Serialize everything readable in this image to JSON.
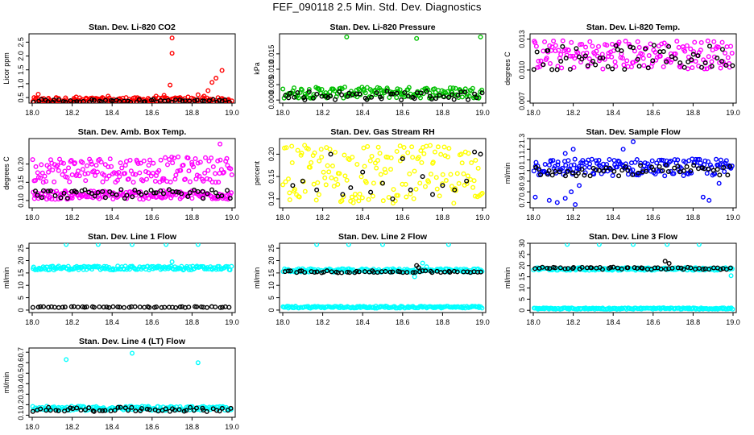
{
  "page": {
    "title": "FEF_090118  2.5 Min. Std. Dev. Diagnostics"
  },
  "colors": {
    "red": "#ff0000",
    "green": "#00c000",
    "magenta": "#ff00ff",
    "yellow": "#ffff00",
    "blue": "#0000ff",
    "cyan": "#00ffff",
    "black": "#000000"
  },
  "chart_data": [
    {
      "type": "scatter",
      "title": "Stan. Dev. Li-820 CO2",
      "xlabel": "",
      "ylabel": "Licor ppm",
      "xlim": [
        18.0,
        19.0
      ],
      "ylim": [
        0.3,
        2.8
      ],
      "xticks": [
        18.0,
        18.2,
        18.4,
        18.6,
        18.8,
        19.0
      ],
      "xtick_labels": [
        "18.0",
        "18.2",
        "18.4",
        "18.6",
        "18.8",
        "19.0"
      ],
      "yticks": [
        0.5,
        1.0,
        1.5,
        2.0,
        2.5
      ],
      "ytick_labels": [
        "0.5",
        "1.0",
        "1.5",
        "2.0",
        "2.5"
      ],
      "series": [
        {
          "name": "main",
          "color": "red",
          "points": [
            [
              18.03,
              0.62
            ],
            [
              18.08,
              0.45
            ],
            [
              18.12,
              0.5
            ],
            [
              18.17,
              0.42
            ],
            [
              18.22,
              0.52
            ],
            [
              18.27,
              0.48
            ],
            [
              18.33,
              0.45
            ],
            [
              18.38,
              0.55
            ],
            [
              18.43,
              0.44
            ],
            [
              18.47,
              0.5
            ],
            [
              18.52,
              0.42
            ],
            [
              18.58,
              0.47
            ],
            [
              18.62,
              0.55
            ],
            [
              18.66,
              0.58
            ],
            [
              18.69,
              0.95
            ],
            [
              18.7,
              2.1
            ],
            [
              18.7,
              2.65
            ],
            [
              18.74,
              0.5
            ],
            [
              18.78,
              0.52
            ],
            [
              18.83,
              0.6
            ],
            [
              18.86,
              0.55
            ],
            [
              18.88,
              0.75
            ],
            [
              18.9,
              1.05
            ],
            [
              18.92,
              1.2
            ],
            [
              18.95,
              1.48
            ],
            [
              18.98,
              0.4
            ]
          ],
          "band": {
            "center": 0.4,
            "spread": 0.1
          }
        },
        {
          "name": "reference",
          "color": "black",
          "band": {
            "center": 0.38,
            "spread": 0.05
          }
        }
      ]
    },
    {
      "type": "scatter",
      "title": "Stan. Dev. Li-820 Pressure",
      "xlabel": "",
      "ylabel": "kPa",
      "xlim": [
        18.0,
        19.0
      ],
      "ylim": [
        -0.001,
        0.0215
      ],
      "xticks": [
        18.0,
        18.2,
        18.4,
        18.6,
        18.8,
        19.0
      ],
      "xtick_labels": [
        "18.0",
        "18.2",
        "18.4",
        "18.6",
        "18.8",
        "19.0"
      ],
      "yticks": [
        0.0,
        0.005,
        0.01,
        0.015
      ],
      "ytick_labels": [
        "0.000",
        "0.005",
        "0.010",
        "0.015"
      ],
      "series": [
        {
          "name": "main",
          "color": "green",
          "points": [
            [
              18.32,
              0.0205
            ],
            [
              18.67,
              0.02
            ],
            [
              18.99,
              0.0205
            ]
          ],
          "band": {
            "center": 0.0024,
            "spread": 0.0018
          }
        },
        {
          "name": "reference",
          "color": "black",
          "band": {
            "center": 0.0015,
            "spread": 0.0015
          }
        }
      ]
    },
    {
      "type": "scatter",
      "title": "Stan. Dev. Li-820 Temp.",
      "xlabel": "",
      "ylabel": "degrees C",
      "xlim": [
        18.0,
        19.0
      ],
      "ylim": [
        0.0068,
        0.0135
      ],
      "xticks": [
        18.0,
        18.2,
        18.4,
        18.6,
        18.8,
        19.0
      ],
      "xtick_labels": [
        "18.0",
        "18.2",
        "18.4",
        "18.6",
        "18.8",
        "19.0"
      ],
      "yticks": [
        0.007,
        0.01,
        0.013
      ],
      "ytick_labels": [
        "0.007",
        "0.010",
        "0.013"
      ],
      "series": [
        {
          "name": "main",
          "color": "magenta",
          "band": {
            "center": 0.0115,
            "spread": 0.0014
          }
        },
        {
          "name": "reference",
          "color": "black",
          "band": {
            "center": 0.0112,
            "spread": 0.0012
          }
        }
      ]
    },
    {
      "type": "scatter",
      "title": "Stan. Dev. Amb. Box Temp.",
      "xlabel": "",
      "ylabel": "degrees C",
      "xlim": [
        18.0,
        19.0
      ],
      "ylim": [
        0.08,
        0.27
      ],
      "xticks": [
        18.0,
        18.2,
        18.4,
        18.6,
        18.8,
        19.0
      ],
      "xtick_labels": [
        "18.0",
        "18.2",
        "18.4",
        "18.6",
        "18.8",
        "19.0"
      ],
      "yticks": [
        0.1,
        0.15,
        0.2
      ],
      "ytick_labels": [
        "0.10",
        "0.15",
        "0.20"
      ],
      "series": [
        {
          "name": "main",
          "color": "magenta",
          "points": [
            [
              18.94,
              0.255
            ]
          ],
          "band": {
            "center": 0.185,
            "spread": 0.035
          }
        },
        {
          "name": "secondary",
          "color": "magenta",
          "band": {
            "center": 0.115,
            "spread": 0.012
          }
        },
        {
          "name": "reference",
          "color": "black",
          "band": {
            "center": 0.118,
            "spread": 0.012
          }
        }
      ]
    },
    {
      "type": "scatter",
      "title": "Stan. Dev. Gas Stream RH",
      "xlabel": "",
      "ylabel": "percent",
      "xlim": [
        18.0,
        19.0
      ],
      "ylim": [
        0.08,
        0.235
      ],
      "xticks": [
        18.0,
        18.2,
        18.4,
        18.6,
        18.8,
        19.0
      ],
      "xtick_labels": [
        "18.0",
        "18.2",
        "18.4",
        "18.6",
        "18.8",
        "19.0"
      ],
      "yticks": [
        0.1,
        0.15,
        0.2
      ],
      "ytick_labels": [
        "0.10",
        "0.15",
        "0.20"
      ],
      "series": [
        {
          "name": "main",
          "color": "yellow",
          "band": {
            "center": 0.155,
            "spread": 0.065
          }
        },
        {
          "name": "reference",
          "color": "black",
          "points": [
            [
              18.05,
              0.13
            ],
            [
              18.1,
              0.14
            ],
            [
              18.17,
              0.12
            ],
            [
              18.24,
              0.2
            ],
            [
              18.3,
              0.11
            ],
            [
              18.34,
              0.125
            ],
            [
              18.4,
              0.16
            ],
            [
              18.44,
              0.115
            ],
            [
              18.5,
              0.135
            ],
            [
              18.55,
              0.1
            ],
            [
              18.6,
              0.19
            ],
            [
              18.64,
              0.12
            ],
            [
              18.7,
              0.15
            ],
            [
              18.75,
              0.11
            ],
            [
              18.8,
              0.13
            ],
            [
              18.86,
              0.12
            ],
            [
              18.92,
              0.14
            ],
            [
              18.96,
              0.205
            ],
            [
              18.99,
              0.2
            ]
          ]
        }
      ]
    },
    {
      "type": "scatter",
      "title": "Stan. Dev. Sample Flow",
      "xlabel": "",
      "ylabel": "ml/min",
      "xlim": [
        18.0,
        19.0
      ],
      "ylim": [
        0.65,
        1.3
      ],
      "xticks": [
        18.0,
        18.2,
        18.4,
        18.6,
        18.8,
        19.0
      ],
      "xtick_labels": [
        "18.0",
        "18.2",
        "18.4",
        "18.6",
        "18.8",
        "19.0"
      ],
      "yticks": [
        0.7,
        0.8,
        0.9,
        1.0,
        1.1,
        1.2,
        1.3
      ],
      "ytick_labels": [
        "0.7",
        "0.8",
        "0.9",
        "1.0",
        "1.1",
        "1.2",
        "1.3"
      ],
      "series": [
        {
          "name": "main",
          "color": "blue",
          "points": [
            [
              18.01,
              0.75
            ],
            [
              18.08,
              0.72
            ],
            [
              18.12,
              0.7
            ],
            [
              18.16,
              0.74
            ],
            [
              18.19,
              0.8
            ],
            [
              18.21,
              0.68
            ],
            [
              18.23,
              0.86
            ],
            [
              18.2,
              1.2
            ],
            [
              18.16,
              1.16
            ],
            [
              18.5,
              1.27
            ],
            [
              18.45,
              1.2
            ],
            [
              18.85,
              0.75
            ],
            [
              18.88,
              0.72
            ],
            [
              18.93,
              0.88
            ]
          ],
          "band": {
            "center": 1.03,
            "spread": 0.08
          }
        },
        {
          "name": "reference",
          "color": "black",
          "band": {
            "center": 1.0,
            "spread": 0.05
          }
        }
      ]
    },
    {
      "type": "scatter",
      "title": "Stan. Dev. Line 1 Flow",
      "xlabel": "",
      "ylabel": "ml/min",
      "xlim": [
        18.0,
        19.0
      ],
      "ylim": [
        -1,
        27
      ],
      "xticks": [
        18.0,
        18.2,
        18.4,
        18.6,
        18.8,
        19.0
      ],
      "xtick_labels": [
        "18.0",
        "18.2",
        "18.4",
        "18.6",
        "18.8",
        "19.0"
      ],
      "yticks": [
        0,
        5,
        10,
        15,
        20,
        25
      ],
      "ytick_labels": [
        "0",
        "5",
        "10",
        "15",
        "20",
        "25"
      ],
      "series": [
        {
          "name": "main",
          "color": "cyan",
          "points": [
            [
              18.17,
              26.5
            ],
            [
              18.33,
              26.5
            ],
            [
              18.5,
              26.5
            ],
            [
              18.67,
              26.5
            ],
            [
              18.83,
              26.5
            ],
            [
              18.7,
              19.5
            ]
          ],
          "band": {
            "center": 17,
            "spread": 0.8
          }
        },
        {
          "name": "reference",
          "color": "black",
          "band": {
            "center": 1.2,
            "spread": 0.2
          }
        }
      ]
    },
    {
      "type": "scatter",
      "title": "Stan. Dev. Line 2 Flow",
      "xlabel": "",
      "ylabel": "ml/min",
      "xlim": [
        18.0,
        19.0
      ],
      "ylim": [
        -1,
        27
      ],
      "xticks": [
        18.0,
        18.2,
        18.4,
        18.6,
        18.8,
        19.0
      ],
      "xtick_labels": [
        "18.0",
        "18.2",
        "18.4",
        "18.6",
        "18.8",
        "19.0"
      ],
      "yticks": [
        0,
        5,
        10,
        15,
        20,
        25
      ],
      "ytick_labels": [
        "0",
        "5",
        "10",
        "15",
        "20",
        "25"
      ],
      "series": [
        {
          "name": "main",
          "color": "cyan",
          "points": [
            [
              18.17,
              26.5
            ],
            [
              18.33,
              26.5
            ],
            [
              18.5,
              26.5
            ],
            [
              18.83,
              26.5
            ],
            [
              18.7,
              19
            ],
            [
              18.72,
              17.5
            ],
            [
              18.66,
              13.5
            ]
          ],
          "band": {
            "center": 16,
            "spread": 0.7
          }
        },
        {
          "name": "secondary",
          "color": "cyan",
          "band": {
            "center": 1.2,
            "spread": 0.4
          }
        },
        {
          "name": "reference",
          "color": "black",
          "points": [
            [
              18.67,
              18
            ],
            [
              18.68,
              17.2
            ]
          ],
          "band": {
            "center": 15.5,
            "spread": 0.4
          }
        }
      ]
    },
    {
      "type": "scatter",
      "title": "Stan. Dev. Line 3 Flow",
      "xlabel": "",
      "ylabel": "ml/min",
      "xlim": [
        18.0,
        19.0
      ],
      "ylim": [
        -1,
        30
      ],
      "xticks": [
        18.0,
        18.2,
        18.4,
        18.6,
        18.8,
        19.0
      ],
      "xtick_labels": [
        "18.0",
        "18.2",
        "18.4",
        "18.6",
        "18.8",
        "19.0"
      ],
      "yticks": [
        0,
        5,
        10,
        15,
        20,
        25,
        30
      ],
      "ytick_labels": [
        "0",
        "5",
        "10",
        "15",
        "20",
        "25",
        "30"
      ],
      "series": [
        {
          "name": "main",
          "color": "cyan",
          "points": [
            [
              18.17,
              29.5
            ],
            [
              18.33,
              29.5
            ],
            [
              18.5,
              29.5
            ],
            [
              18.67,
              29.5
            ],
            [
              18.83,
              29.5
            ],
            [
              18.99,
              15.5
            ]
          ],
          "band": {
            "center": 18.5,
            "spread": 0.6
          }
        },
        {
          "name": "secondary",
          "color": "cyan",
          "band": {
            "center": 0.8,
            "spread": 0.3
          }
        },
        {
          "name": "reference",
          "color": "black",
          "points": [
            [
              18.66,
              22
            ],
            [
              18.68,
              21
            ]
          ],
          "band": {
            "center": 18.8,
            "spread": 0.5
          }
        }
      ]
    },
    {
      "type": "scatter",
      "title": "Stan. Dev. Line 4 (LT) Flow",
      "xlabel": "",
      "ylabel": "ml/min",
      "xlim": [
        18.0,
        19.0
      ],
      "ylim": [
        0.08,
        0.74
      ],
      "xticks": [
        18.0,
        18.2,
        18.4,
        18.6,
        18.8,
        19.0
      ],
      "xtick_labels": [
        "18.0",
        "18.2",
        "18.4",
        "18.6",
        "18.8",
        "19.0"
      ],
      "yticks": [
        0.1,
        0.2,
        0.3,
        0.4,
        0.5,
        0.6,
        0.7
      ],
      "ytick_labels": [
        "0.1",
        "0.2",
        "0.3",
        "0.4",
        "0.5",
        "0.6",
        "0.7"
      ],
      "series": [
        {
          "name": "main",
          "color": "cyan",
          "points": [
            [
              18.17,
              0.63
            ],
            [
              18.5,
              0.69
            ],
            [
              18.83,
              0.6
            ]
          ],
          "band": {
            "center": 0.165,
            "spread": 0.02
          }
        },
        {
          "name": "reference",
          "color": "black",
          "band": {
            "center": 0.155,
            "spread": 0.02
          }
        }
      ]
    }
  ]
}
